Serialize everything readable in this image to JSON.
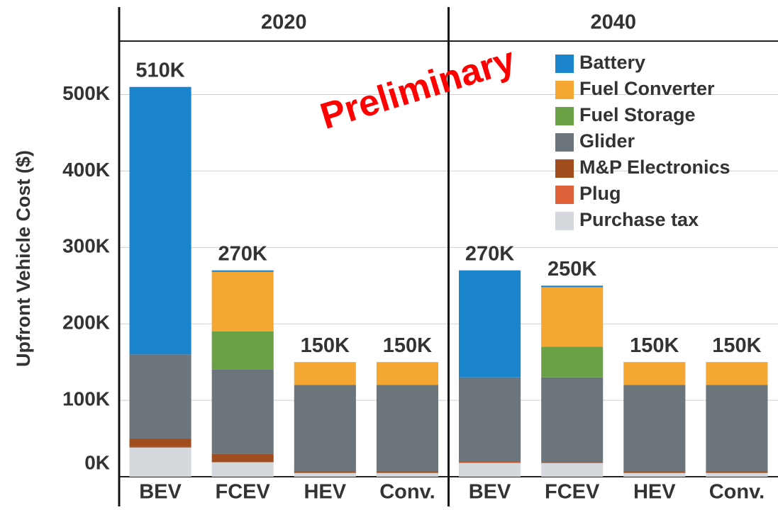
{
  "chart_data": {
    "type": "stacked_bar",
    "y_label": "Upfront Vehicle Cost ($)",
    "annotation": "Preliminary",
    "groups": [
      "2020",
      "2040"
    ],
    "categories": [
      "BEV",
      "FCEV",
      "HEV",
      "Conv.",
      "BEV",
      "FCEV",
      "HEV",
      "Conv."
    ],
    "series": [
      {
        "name": "Battery",
        "color": "#1a85cc",
        "values": [
          350000,
          2000,
          0,
          0,
          140000,
          2000,
          0,
          0
        ]
      },
      {
        "name": "Fuel Converter",
        "color": "#f5a733",
        "values": [
          0,
          78000,
          30000,
          30000,
          0,
          78000,
          30000,
          30000
        ]
      },
      {
        "name": "Fuel Storage",
        "color": "#6aa146",
        "values": [
          0,
          50000,
          0,
          0,
          0,
          40000,
          0,
          0
        ]
      },
      {
        "name": "Glider",
        "color": "#6b757b",
        "values": [
          110000,
          110000,
          113000,
          113000,
          110000,
          111000,
          113000,
          113000
        ]
      },
      {
        "name": "M&P Electronics",
        "color": "#a14d1e",
        "values": [
          11000,
          11000,
          2000,
          2000,
          1000,
          1000,
          2000,
          2000
        ]
      },
      {
        "name": "Plug",
        "color": "#e0623a",
        "values": [
          1000,
          0,
          0,
          0,
          1000,
          0,
          0,
          0
        ]
      },
      {
        "name": "Purchase tax",
        "color": "#d5d8dc",
        "values": [
          38000,
          19000,
          5000,
          5000,
          18000,
          18000,
          5000,
          5000
        ]
      }
    ],
    "totals": [
      510000,
      270000,
      150000,
      150000,
      270000,
      250000,
      150000,
      150000
    ],
    "total_labels": [
      "510K",
      "270K",
      "150K",
      "150K",
      "270K",
      "250K",
      "150K",
      "150K"
    ],
    "ylim": [
      0,
      570000
    ],
    "yticks": [
      {
        "value": 0,
        "label": "0K"
      },
      {
        "value": 100000,
        "label": "100K"
      },
      {
        "value": 200000,
        "label": "200K"
      },
      {
        "value": 300000,
        "label": "300K"
      },
      {
        "value": 400000,
        "label": "400K"
      },
      {
        "value": 500000,
        "label": "500K"
      }
    ],
    "grid": true
  }
}
